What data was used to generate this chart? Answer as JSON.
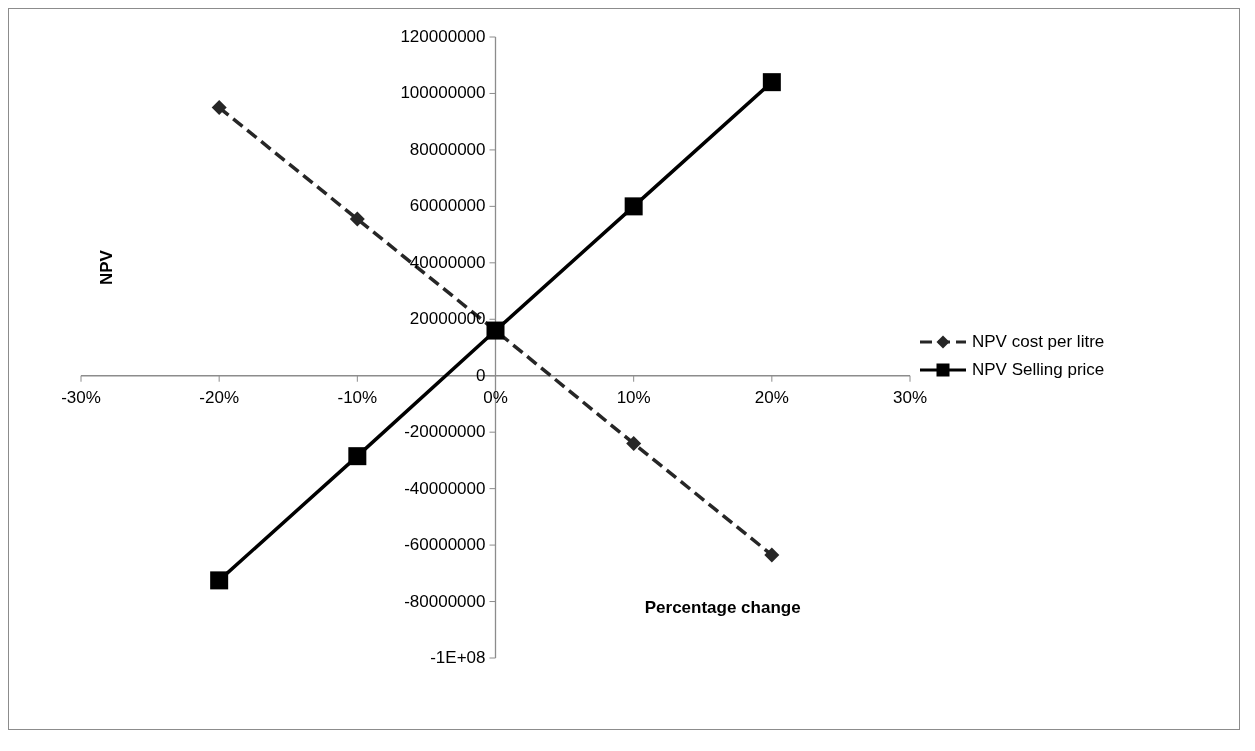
{
  "chart_data": {
    "type": "line",
    "xlabel": "Percentage change",
    "ylabel": "NPV",
    "x": [
      -20,
      -10,
      0,
      10,
      20
    ],
    "series": [
      {
        "name": "NPV cost per litre",
        "color": "#262626",
        "values": [
          95000000,
          55500000,
          16000000,
          -24000000,
          -63500000
        ],
        "marker": "diamond",
        "line_style": "dashed"
      },
      {
        "name": "NPV Selling price",
        "color": "#000000",
        "values": [
          -72500000,
          -28500000,
          16000000,
          60000000,
          104000000
        ],
        "marker": "square",
        "line_style": "solid"
      }
    ],
    "xlim": [
      -30,
      30
    ],
    "xticks": [
      {
        "value": -30,
        "label": "-30%"
      },
      {
        "value": -20,
        "label": "-20%"
      },
      {
        "value": -10,
        "label": "-10%"
      },
      {
        "value": 0,
        "label": "0%"
      },
      {
        "value": 10,
        "label": "10%"
      },
      {
        "value": 20,
        "label": "20%"
      },
      {
        "value": 30,
        "label": "30%"
      }
    ],
    "ylim": [
      -100000000,
      120000000
    ],
    "yticks": [
      {
        "value": -100000000,
        "label": "-1E+08"
      },
      -80000000,
      -60000000,
      -40000000,
      -20000000,
      0,
      20000000,
      40000000,
      60000000,
      80000000,
      100000000,
      120000000
    ],
    "grid": false,
    "legend": "right"
  }
}
